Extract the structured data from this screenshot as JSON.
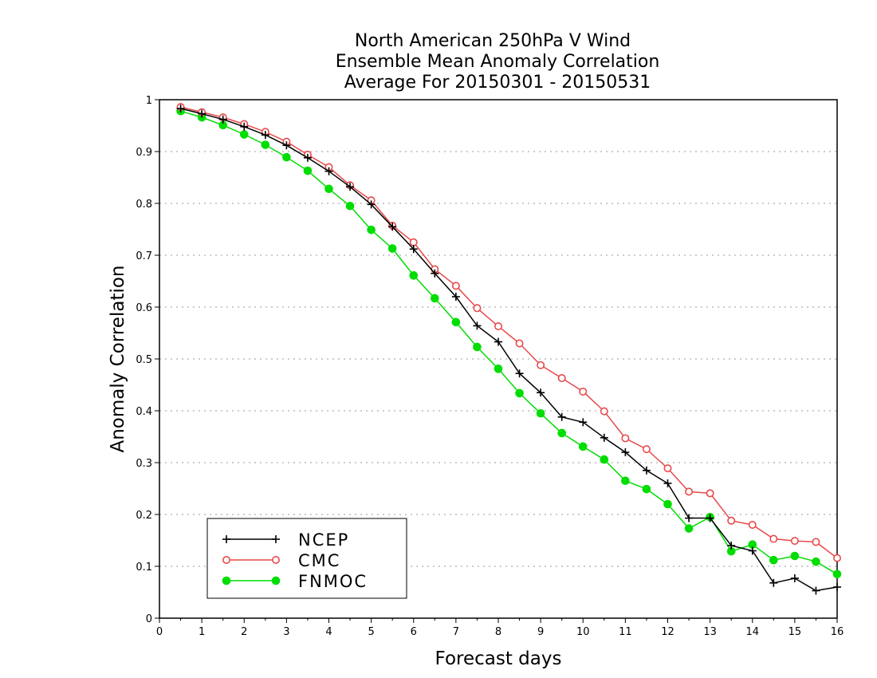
{
  "chart_data": {
    "type": "line",
    "title": [
      "North American 250hPa V Wind",
      "Ensemble Mean Anomaly Correlation",
      "Average For 20150301 - 20150531"
    ],
    "xlabel": "Forecast days",
    "ylabel": "Anomaly Correlation",
    "xlim": [
      0,
      16
    ],
    "ylim": [
      0,
      1
    ],
    "x_ticks": [
      "0",
      "1",
      "2",
      "3",
      "4",
      "5",
      "6",
      "7",
      "8",
      "9",
      "10",
      "11",
      "12",
      "13",
      "14",
      "15",
      "16"
    ],
    "y_ticks": [
      "0",
      "0.1",
      "0.2",
      "0.3",
      "0.4",
      "0.5",
      "0.6",
      "0.7",
      "0.8",
      "0.9",
      "1"
    ],
    "grid": "horizontal dotted",
    "legend_position": "bottom-left",
    "x": [
      0.5,
      1,
      1.5,
      2,
      2.5,
      3,
      3.5,
      4,
      4.5,
      5,
      5.5,
      6,
      6.5,
      7,
      7.5,
      8,
      8.5,
      9,
      9.5,
      10,
      10.5,
      11,
      11.5,
      12,
      12.5,
      13,
      13.5,
      14,
      14.5,
      15,
      15.5,
      16
    ],
    "series": [
      {
        "name": "NCEP",
        "color": "#000000",
        "marker": "plus",
        "values": [
          0.983,
          0.973,
          0.962,
          0.948,
          0.932,
          0.912,
          0.888,
          0.862,
          0.832,
          0.798,
          0.755,
          0.712,
          0.665,
          0.62,
          0.564,
          0.533,
          0.472,
          0.435,
          0.388,
          0.378,
          0.348,
          0.32,
          0.285,
          0.26,
          0.193,
          0.193,
          0.14,
          0.13,
          0.068,
          0.077,
          0.053,
          0.06
        ]
      },
      {
        "name": "CMC",
        "color": "#e8494a",
        "marker": "open-circle",
        "values": [
          0.986,
          0.976,
          0.966,
          0.953,
          0.938,
          0.919,
          0.894,
          0.87,
          0.835,
          0.806,
          0.757,
          0.725,
          0.673,
          0.641,
          0.598,
          0.563,
          0.53,
          0.488,
          0.463,
          0.437,
          0.399,
          0.347,
          0.326,
          0.289,
          0.244,
          0.241,
          0.188,
          0.18,
          0.153,
          0.149,
          0.147,
          0.116
        ]
      },
      {
        "name": "FNMOC",
        "color": "#00dd00",
        "marker": "filled-circle",
        "values": [
          0.978,
          0.966,
          0.951,
          0.933,
          0.913,
          0.889,
          0.863,
          0.828,
          0.795,
          0.749,
          0.713,
          0.661,
          0.617,
          0.571,
          0.523,
          0.481,
          0.434,
          0.395,
          0.357,
          0.331,
          0.306,
          0.265,
          0.249,
          0.22,
          0.173,
          0.195,
          0.129,
          0.142,
          0.112,
          0.12,
          0.109,
          0.085
        ]
      }
    ]
  }
}
